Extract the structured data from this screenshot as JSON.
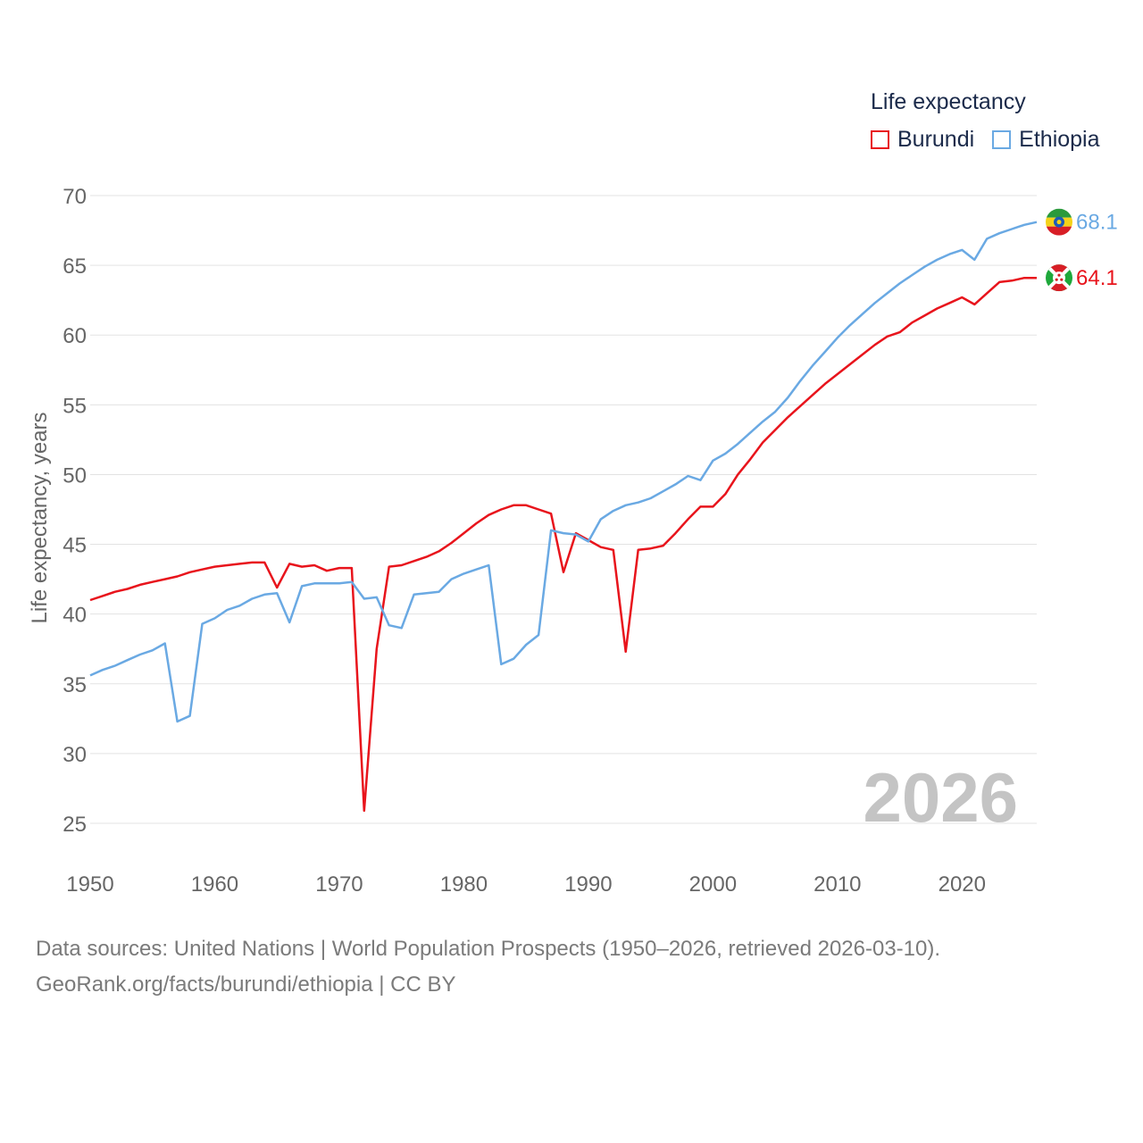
{
  "legend": {
    "title": "Life expectancy",
    "items": [
      {
        "name": "Burundi",
        "color": "#e8141c"
      },
      {
        "name": "Ethiopia",
        "color": "#6aa9e3"
      }
    ]
  },
  "year_label": "2026",
  "source": {
    "line1": "Data sources: United Nations | World Population Prospects (1950–2026, retrieved 2026-03-10).",
    "line2": "GeoRank.org/facts/burundi/ethiopia | CC BY"
  },
  "chart_data": {
    "type": "line",
    "title": "Life expectancy",
    "xlabel": "",
    "ylabel": "Life expectancy, years",
    "xlim": [
      1950,
      2026
    ],
    "ylim": [
      25,
      70
    ],
    "x_ticks": [
      1950,
      1960,
      1970,
      1980,
      1990,
      2000,
      2010,
      2020
    ],
    "y_ticks": [
      25,
      30,
      35,
      40,
      45,
      50,
      55,
      60,
      65,
      70
    ],
    "grid": true,
    "legend_position": "top-right",
    "x": [
      1950,
      1951,
      1952,
      1953,
      1954,
      1955,
      1956,
      1957,
      1958,
      1959,
      1960,
      1961,
      1962,
      1963,
      1964,
      1965,
      1966,
      1967,
      1968,
      1969,
      1970,
      1971,
      1972,
      1973,
      1974,
      1975,
      1976,
      1977,
      1978,
      1979,
      1980,
      1981,
      1982,
      1983,
      1984,
      1985,
      1986,
      1987,
      1988,
      1989,
      1990,
      1991,
      1992,
      1993,
      1994,
      1995,
      1996,
      1997,
      1998,
      1999,
      2000,
      2001,
      2002,
      2003,
      2004,
      2005,
      2006,
      2007,
      2008,
      2009,
      2010,
      2011,
      2012,
      2013,
      2014,
      2015,
      2016,
      2017,
      2018,
      2019,
      2020,
      2021,
      2022,
      2023,
      2024,
      2025,
      2026
    ],
    "series": [
      {
        "name": "Burundi",
        "color": "#e8141c",
        "end_label": "64.1",
        "flag": "burundi-flag",
        "values": [
          41.0,
          41.3,
          41.6,
          41.8,
          42.1,
          42.3,
          42.5,
          42.7,
          43.0,
          43.2,
          43.4,
          43.5,
          43.6,
          43.7,
          43.7,
          41.9,
          43.6,
          43.4,
          43.5,
          43.1,
          43.3,
          43.3,
          25.9,
          37.5,
          43.4,
          43.5,
          43.8,
          44.1,
          44.5,
          45.1,
          45.8,
          46.5,
          47.1,
          47.5,
          47.8,
          47.8,
          47.5,
          47.2,
          43.0,
          45.8,
          45.3,
          44.8,
          44.6,
          37.3,
          44.6,
          44.7,
          44.9,
          45.8,
          46.8,
          47.7,
          47.7,
          48.6,
          50.0,
          51.1,
          52.3,
          53.2,
          54.1,
          54.9,
          55.7,
          56.5,
          57.2,
          57.9,
          58.6,
          59.3,
          59.9,
          60.2,
          60.9,
          61.4,
          61.9,
          62.3,
          62.7,
          62.2,
          63.0,
          63.8,
          63.9,
          64.1,
          64.1
        ]
      },
      {
        "name": "Ethiopia",
        "color": "#6aa9e3",
        "end_label": "68.1",
        "flag": "ethiopia-flag",
        "values": [
          35.6,
          36.0,
          36.3,
          36.7,
          37.1,
          37.4,
          37.9,
          32.3,
          32.7,
          39.3,
          39.7,
          40.3,
          40.6,
          41.1,
          41.4,
          41.5,
          39.4,
          42.0,
          42.2,
          42.2,
          42.2,
          42.3,
          41.1,
          41.2,
          39.2,
          39.0,
          41.4,
          41.5,
          41.6,
          42.5,
          42.9,
          43.2,
          43.5,
          36.4,
          36.8,
          37.8,
          38.5,
          46.0,
          45.8,
          45.7,
          45.2,
          46.8,
          47.4,
          47.8,
          48.0,
          48.3,
          48.8,
          49.3,
          49.9,
          49.6,
          51.0,
          51.5,
          52.2,
          53.0,
          53.8,
          54.5,
          55.5,
          56.7,
          57.8,
          58.8,
          59.8,
          60.7,
          61.5,
          62.3,
          63.0,
          63.7,
          64.3,
          64.9,
          65.4,
          65.8,
          66.1,
          65.4,
          66.9,
          67.3,
          67.6,
          67.9,
          68.1
        ]
      }
    ]
  }
}
